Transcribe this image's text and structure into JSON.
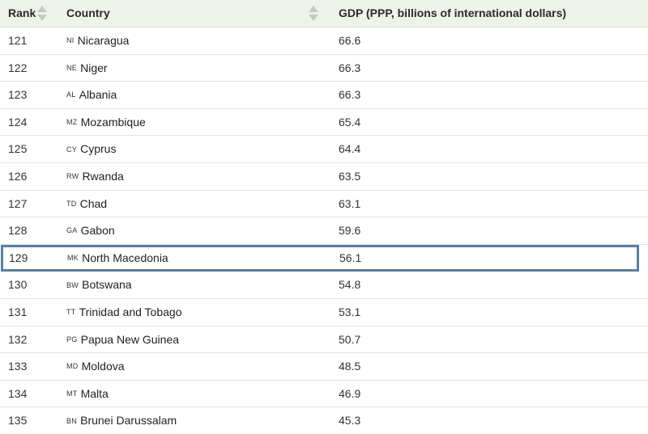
{
  "header": {
    "rank_label": "Rank",
    "country_label": "Country",
    "gdp_label": "GDP (PPP, billions of international dollars)"
  },
  "colors": {
    "header_bg": "#eef2e9",
    "highlight_border": "#5a7fa3"
  },
  "icons": [
    "sort-arrows-icon"
  ],
  "rows": [
    {
      "rank": "121",
      "code": "NI",
      "country": "Nicaragua",
      "gdp": "66.6"
    },
    {
      "rank": "122",
      "code": "NE",
      "country": "Niger",
      "gdp": "66.3"
    },
    {
      "rank": "123",
      "code": "AL",
      "country": "Albania",
      "gdp": "66.3"
    },
    {
      "rank": "124",
      "code": "MZ",
      "country": "Mozambique",
      "gdp": "65.4"
    },
    {
      "rank": "125",
      "code": "CY",
      "country": "Cyprus",
      "gdp": "64.4"
    },
    {
      "rank": "126",
      "code": "RW",
      "country": "Rwanda",
      "gdp": "63.5"
    },
    {
      "rank": "127",
      "code": "TD",
      "country": "Chad",
      "gdp": "63.1"
    },
    {
      "rank": "128",
      "code": "GA",
      "country": "Gabon",
      "gdp": "59.6"
    },
    {
      "rank": "129",
      "code": "MK",
      "country": "North Macedonia",
      "gdp": "56.1"
    },
    {
      "rank": "130",
      "code": "BW",
      "country": "Botswana",
      "gdp": "54.8"
    },
    {
      "rank": "131",
      "code": "TT",
      "country": "Trinidad and Tobago",
      "gdp": "53.1"
    },
    {
      "rank": "132",
      "code": "PG",
      "country": "Papua New Guinea",
      "gdp": "50.7"
    },
    {
      "rank": "133",
      "code": "MD",
      "country": "Moldova",
      "gdp": "48.5"
    },
    {
      "rank": "134",
      "code": "MT",
      "country": "Malta",
      "gdp": "46.9"
    },
    {
      "rank": "135",
      "code": "BN",
      "country": "Brunei Darussalam",
      "gdp": "45.3"
    }
  ]
}
